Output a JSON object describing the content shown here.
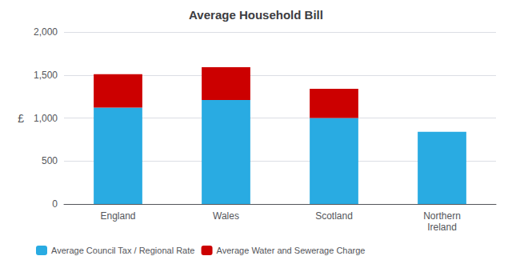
{
  "chart_data": {
    "type": "bar",
    "stacked": true,
    "title": "Average Household Bill",
    "ylabel": "£",
    "categories": [
      "England",
      "Wales",
      "Scotland",
      "Northern\nIreland"
    ],
    "series": [
      {
        "name": "Average Council Tax / Regional Rate",
        "color": "#29ABE2",
        "values": [
          1120,
          1210,
          1000,
          840
        ]
      },
      {
        "name": "Average Water and Sewerage Charge",
        "color": "#CC0000",
        "values": [
          390,
          380,
          340,
          0
        ]
      }
    ],
    "ylim": [
      0,
      2000
    ],
    "yticks": [
      0,
      500,
      {
        "value": 1000,
        "label": "1,000"
      },
      {
        "value": 1500,
        "label": "1,500"
      },
      {
        "value": 2000,
        "label": "2,000"
      }
    ],
    "grid": true,
    "legend": "lower left"
  }
}
